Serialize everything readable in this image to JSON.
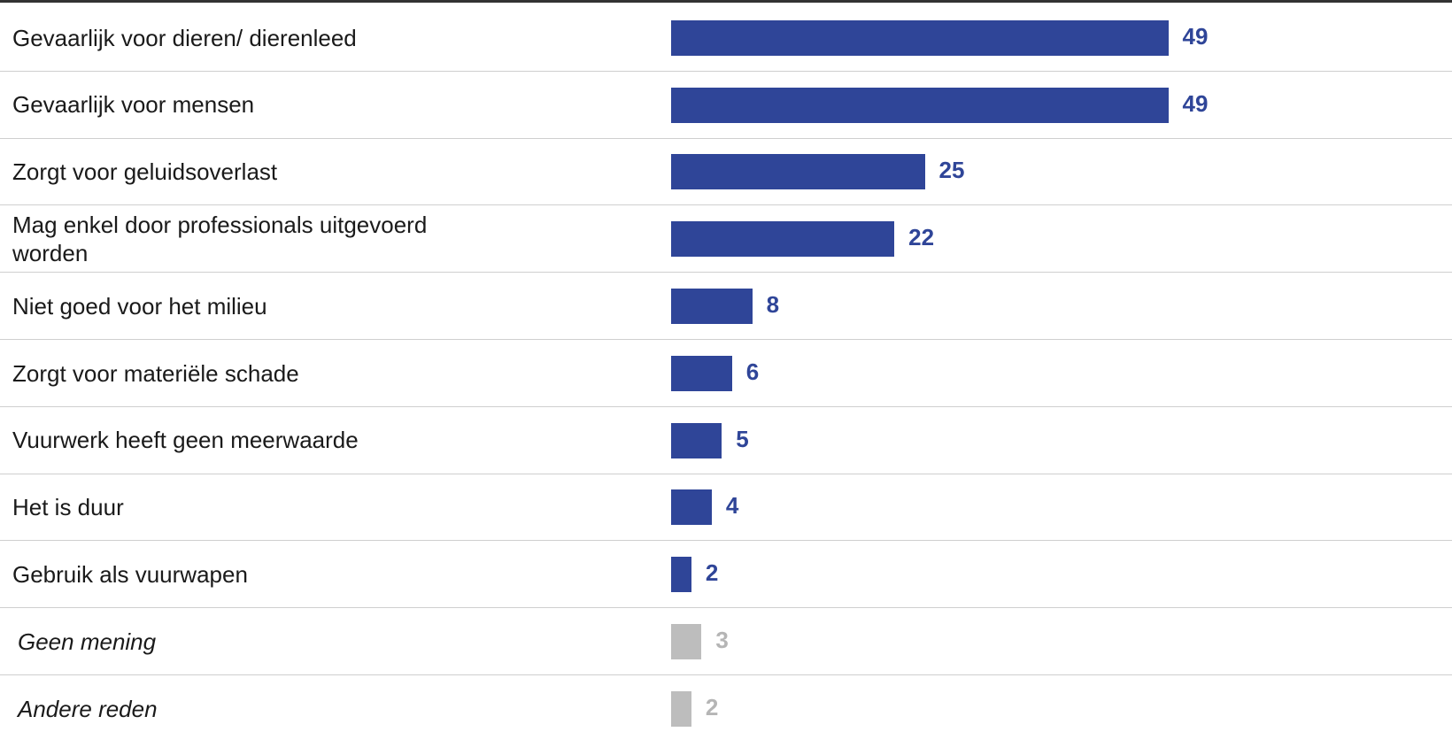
{
  "chart_data": {
    "type": "bar",
    "orientation": "horizontal",
    "categories": [
      "Gevaarlijk voor dieren/ dierenleed",
      "Gevaarlijk voor mensen",
      "Zorgt voor geluidsoverlast",
      "Mag enkel door professionals uitgevoerd worden",
      "Niet goed voor het milieu",
      "Zorgt voor materiële schade",
      "Vuurwerk heeft geen meerwaarde",
      "Het is duur",
      "Gebruik als vuurwapen",
      "Geen mening",
      "Andere reden"
    ],
    "values": [
      49,
      49,
      25,
      22,
      8,
      6,
      5,
      4,
      2,
      3,
      2
    ],
    "italic": [
      false,
      false,
      false,
      false,
      false,
      false,
      false,
      false,
      false,
      true,
      true
    ],
    "bar_colors": [
      "#2f4598",
      "#2f4598",
      "#2f4598",
      "#2f4598",
      "#2f4598",
      "#2f4598",
      "#2f4598",
      "#2f4598",
      "#2f4598",
      "#bdbdbd",
      "#bdbdbd"
    ],
    "value_label_colors": [
      "#2f4598",
      "#2f4598",
      "#2f4598",
      "#2f4598",
      "#2f4598",
      "#2f4598",
      "#2f4598",
      "#2f4598",
      "#2f4598",
      "#b5b5b5",
      "#b5b5b5"
    ],
    "grid": false
  }
}
